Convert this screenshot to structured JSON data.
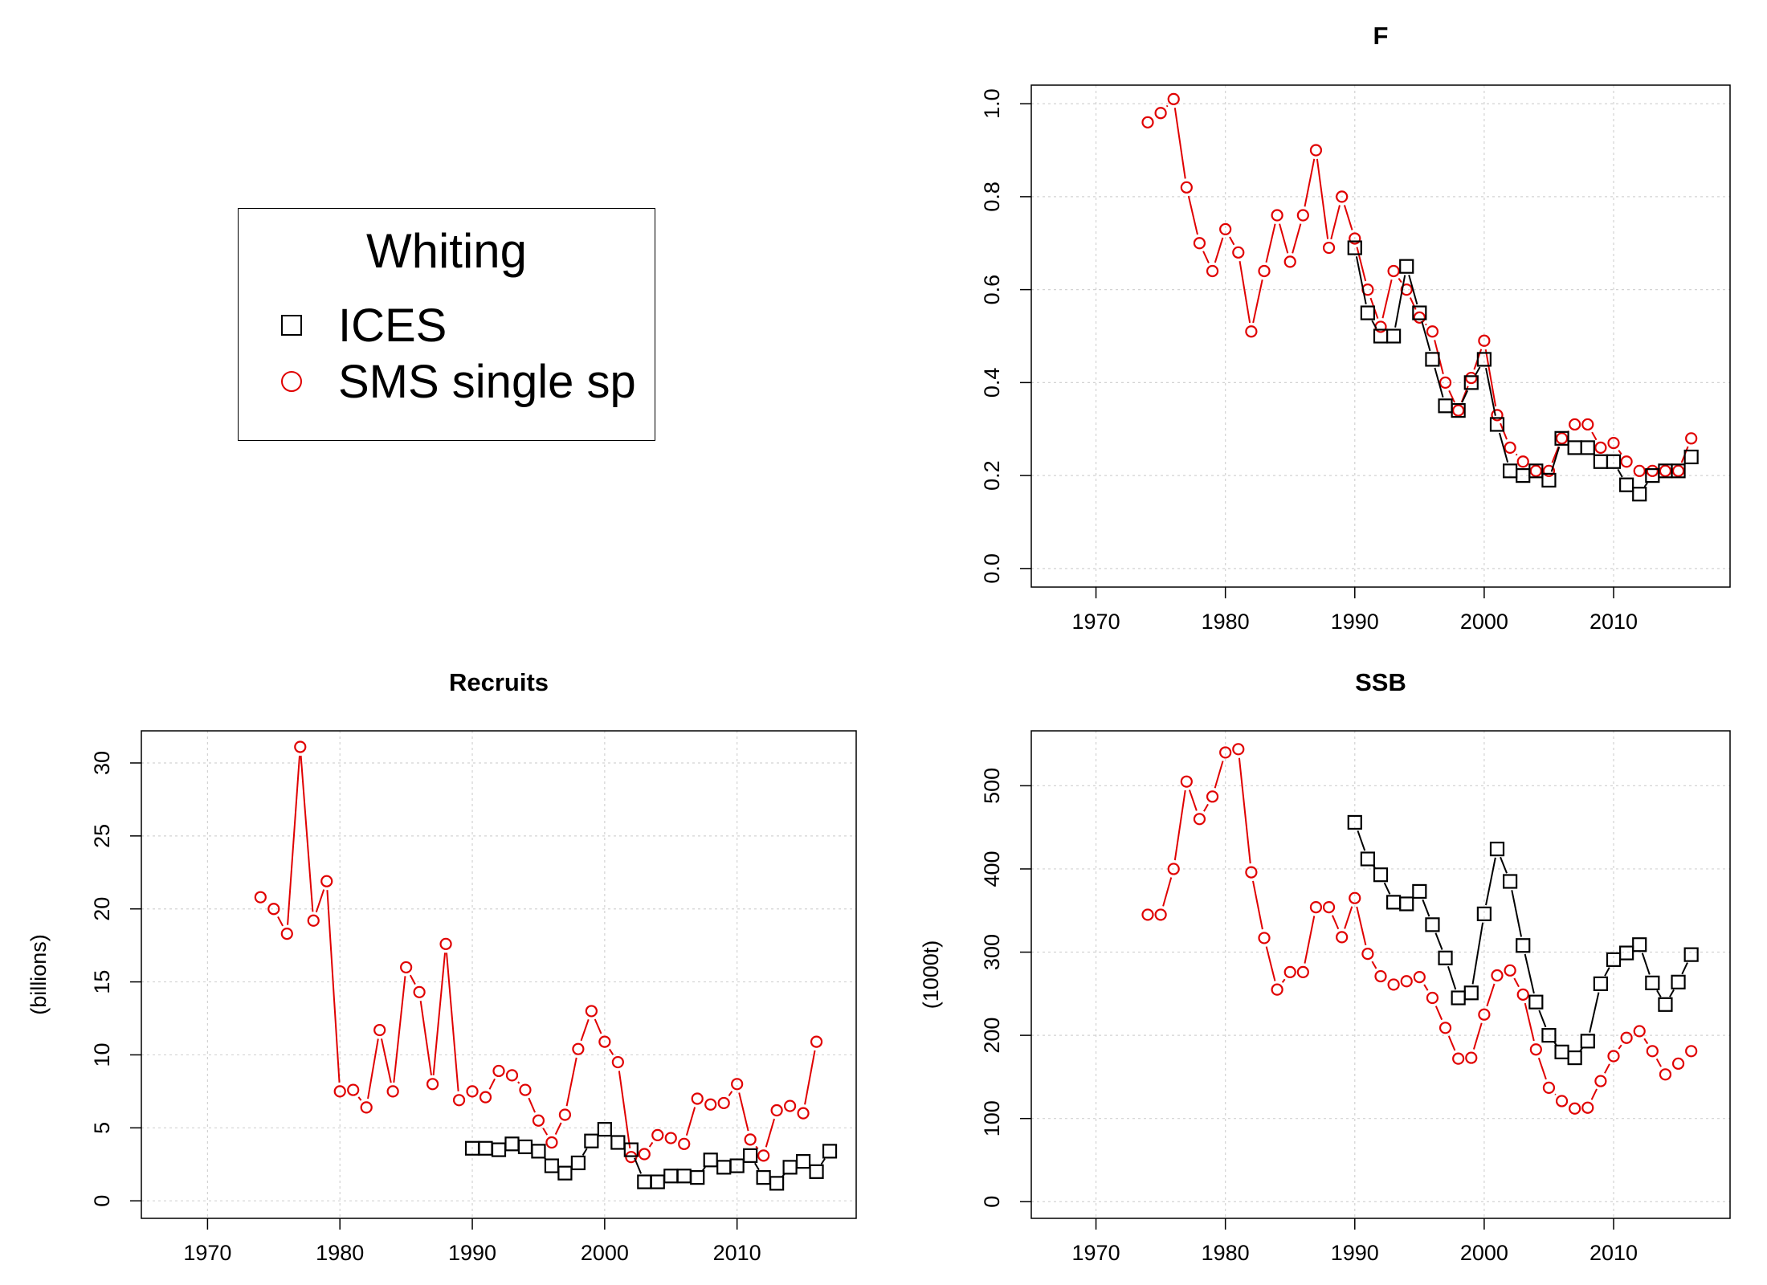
{
  "legend": {
    "title": "Whiting",
    "entries": [
      {
        "label": "ICES",
        "symbol": "square-icon",
        "color": "#000000"
      },
      {
        "label": "SMS single sp",
        "symbol": "circle-icon",
        "color": "#e00000"
      }
    ]
  },
  "colors": {
    "ices": "#000000",
    "sms": "#e00000",
    "grid": "#d3d3d3",
    "axis": "#000000"
  },
  "chart_data": [
    {
      "id": "F",
      "type": "line",
      "title": "F",
      "xlabel": "",
      "ylabel": "",
      "xlim": [
        1965,
        2019
      ],
      "ylim": [
        -0.04,
        1.04
      ],
      "xticks": [
        1970,
        1980,
        1990,
        2000,
        2010
      ],
      "yticks": [
        0.0,
        0.2,
        0.4,
        0.6,
        0.8,
        1.0
      ],
      "ytick_labels": [
        "0.0",
        "0.2",
        "0.4",
        "0.6",
        "0.8",
        "1.0"
      ],
      "grid": true,
      "series": [
        {
          "name": "SMS single sp",
          "marker": "circle",
          "color": "#e00000",
          "x": [
            1974,
            1975,
            1976,
            1977,
            1978,
            1979,
            1980,
            1981,
            1982,
            1983,
            1984,
            1985,
            1986,
            1987,
            1988,
            1989,
            1990,
            1991,
            1992,
            1993,
            1994,
            1995,
            1996,
            1997,
            1998,
            1999,
            2000,
            2001,
            2002,
            2003,
            2004,
            2005,
            2006,
            2007,
            2008,
            2009,
            2010,
            2011,
            2012,
            2013,
            2014,
            2015,
            2016
          ],
          "y": [
            0.96,
            0.98,
            1.01,
            0.82,
            0.7,
            0.64,
            0.73,
            0.68,
            0.51,
            0.64,
            0.76,
            0.66,
            0.76,
            0.9,
            0.69,
            0.8,
            0.71,
            0.6,
            0.52,
            0.64,
            0.6,
            0.54,
            0.51,
            0.4,
            0.34,
            0.41,
            0.49,
            0.33,
            0.26,
            0.23,
            0.21,
            0.21,
            0.28,
            0.31,
            0.31,
            0.26,
            0.27,
            0.23,
            0.21,
            0.21,
            0.21,
            0.21,
            0.28
          ]
        },
        {
          "name": "ICES",
          "marker": "square",
          "color": "#000000",
          "x": [
            1990,
            1991,
            1992,
            1993,
            1994,
            1995,
            1996,
            1997,
            1998,
            1999,
            2000,
            2001,
            2002,
            2003,
            2004,
            2005,
            2006,
            2007,
            2008,
            2009,
            2010,
            2011,
            2012,
            2013,
            2014,
            2015,
            2016
          ],
          "y": [
            0.69,
            0.55,
            0.5,
            0.5,
            0.65,
            0.55,
            0.45,
            0.35,
            0.34,
            0.4,
            0.45,
            0.31,
            0.21,
            0.2,
            0.21,
            0.19,
            0.28,
            0.26,
            0.26,
            0.23,
            0.23,
            0.18,
            0.16,
            0.2,
            0.21,
            0.21,
            0.24
          ]
        }
      ]
    },
    {
      "id": "Recruits",
      "type": "line",
      "title": "Recruits",
      "xlabel": "",
      "ylabel": "(billions)",
      "xlim": [
        1965,
        2019
      ],
      "ylim": [
        -1.2,
        32.2
      ],
      "xticks": [
        1970,
        1980,
        1990,
        2000,
        2010
      ],
      "yticks": [
        0,
        5,
        10,
        15,
        20,
        25,
        30
      ],
      "ytick_labels": [
        "0",
        "5",
        "10",
        "15",
        "20",
        "25",
        "30"
      ],
      "grid": true,
      "series": [
        {
          "name": "SMS single sp",
          "marker": "circle",
          "color": "#e00000",
          "x": [
            1974,
            1975,
            1976,
            1977,
            1978,
            1979,
            1980,
            1981,
            1982,
            1983,
            1984,
            1985,
            1986,
            1987,
            1988,
            1989,
            1990,
            1991,
            1992,
            1993,
            1994,
            1995,
            1996,
            1997,
            1998,
            1999,
            2000,
            2001,
            2002,
            2003,
            2004,
            2005,
            2006,
            2007,
            2008,
            2009,
            2010,
            2011,
            2012,
            2013,
            2014,
            2015,
            2016
          ],
          "y": [
            20.8,
            20.0,
            18.3,
            31.1,
            19.2,
            21.9,
            7.5,
            7.6,
            6.4,
            11.7,
            7.5,
            16.0,
            14.3,
            8.0,
            17.6,
            6.9,
            7.5,
            7.1,
            8.9,
            8.6,
            7.6,
            5.5,
            4.0,
            5.9,
            10.4,
            13.0,
            10.9,
            9.5,
            3.0,
            3.2,
            4.5,
            4.3,
            3.9,
            7.0,
            6.6,
            6.7,
            8.0,
            4.2,
            3.1,
            6.2,
            6.5,
            6.0,
            10.9
          ]
        },
        {
          "name": "ICES",
          "marker": "square",
          "color": "#000000",
          "x": [
            1990,
            1991,
            1992,
            1993,
            1994,
            1995,
            1996,
            1997,
            1998,
            1999,
            2000,
            2001,
            2002,
            2003,
            2004,
            2005,
            2006,
            2007,
            2008,
            2009,
            2010,
            2011,
            2012,
            2013,
            2014,
            2015,
            2016,
            2017
          ],
          "y": [
            3.6,
            3.6,
            3.5,
            3.9,
            3.7,
            3.4,
            2.4,
            1.9,
            2.6,
            4.1,
            4.9,
            4.0,
            3.5,
            1.3,
            1.3,
            1.7,
            1.7,
            1.6,
            2.8,
            2.3,
            2.4,
            3.1,
            1.6,
            1.2,
            2.3,
            2.7,
            2.0,
            3.4
          ]
        }
      ]
    },
    {
      "id": "SSB",
      "type": "line",
      "title": "SSB",
      "xlabel": "",
      "ylabel": "(1000t)",
      "xlim": [
        1965,
        2019
      ],
      "ylim": [
        -20,
        566
      ],
      "xticks": [
        1970,
        1980,
        1990,
        2000,
        2010
      ],
      "yticks": [
        0,
        100,
        200,
        300,
        400,
        500
      ],
      "ytick_labels": [
        "0",
        "100",
        "200",
        "300",
        "400",
        "500"
      ],
      "grid": true,
      "series": [
        {
          "name": "SMS single sp",
          "marker": "circle",
          "color": "#e00000",
          "x": [
            1974,
            1975,
            1976,
            1977,
            1978,
            1979,
            1980,
            1981,
            1982,
            1983,
            1984,
            1985,
            1986,
            1987,
            1988,
            1989,
            1990,
            1991,
            1992,
            1993,
            1994,
            1995,
            1996,
            1997,
            1998,
            1999,
            2000,
            2001,
            2002,
            2003,
            2004,
            2005,
            2006,
            2007,
            2008,
            2009,
            2010,
            2011,
            2012,
            2013,
            2014,
            2015,
            2016
          ],
          "y": [
            345,
            345,
            400,
            505,
            460,
            487,
            540,
            544,
            396,
            317,
            255,
            276,
            276,
            354,
            354,
            318,
            365,
            298,
            271,
            261,
            265,
            270,
            245,
            209,
            172,
            173,
            225,
            272,
            278,
            249,
            183,
            137,
            121,
            112,
            113,
            145,
            175,
            197,
            205,
            181,
            153,
            166,
            181
          ]
        },
        {
          "name": "ICES",
          "marker": "square",
          "color": "#000000",
          "x": [
            1990,
            1991,
            1992,
            1993,
            1994,
            1995,
            1996,
            1997,
            1998,
            1999,
            2000,
            2001,
            2002,
            2003,
            2004,
            2005,
            2006,
            2007,
            2008,
            2009,
            2010,
            2011,
            2012,
            2013,
            2014,
            2015,
            2016
          ],
          "y": [
            456,
            412,
            393,
            360,
            358,
            373,
            333,
            293,
            245,
            251,
            346,
            424,
            385,
            308,
            240,
            200,
            180,
            173,
            193,
            262,
            291,
            299,
            309,
            263,
            237,
            264,
            297
          ]
        }
      ]
    }
  ]
}
